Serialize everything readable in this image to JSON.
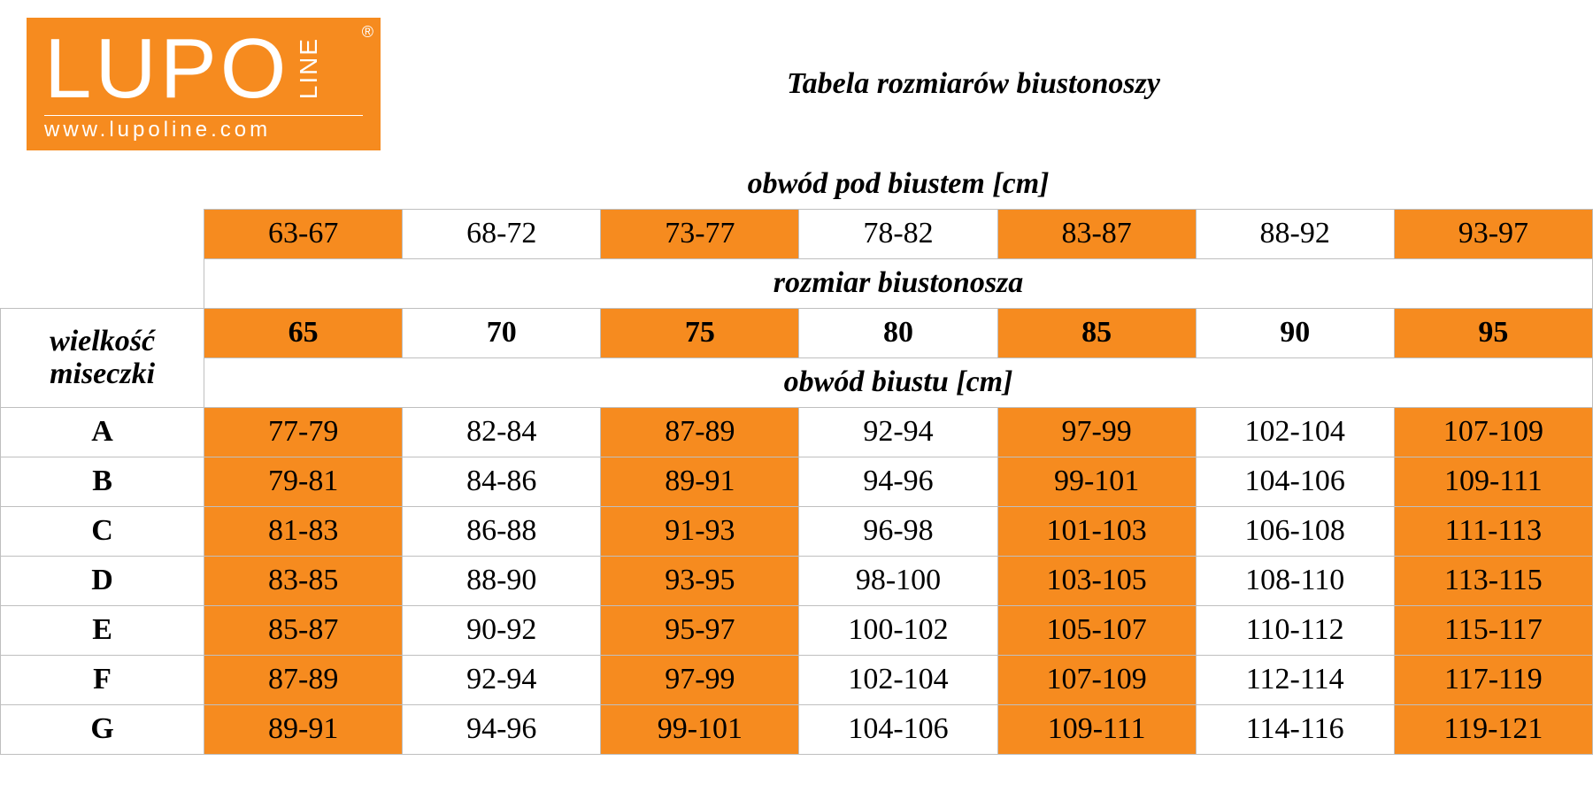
{
  "colors": {
    "brand_orange": "#f68b1f",
    "white": "#ffffff",
    "black": "#000000",
    "grid": "#bfbfbf"
  },
  "logo": {
    "text_main": "LUPO",
    "text_side": "LINE",
    "registered": "®",
    "url": "www.lupoline.com"
  },
  "title": "Tabela rozmiarów biustonoszy",
  "labels": {
    "underbust": "obwód pod biustem [cm]",
    "bra_size": "rozmiar biustonosza",
    "cup_size_1": "wielkość",
    "cup_size_2": "miseczki",
    "bust": "obwód biustu [cm]"
  },
  "underbust_ranges": [
    "63-67",
    "68-72",
    "73-77",
    "78-82",
    "83-87",
    "88-92",
    "93-97"
  ],
  "bra_sizes": [
    "65",
    "70",
    "75",
    "80",
    "85",
    "90",
    "95"
  ],
  "column_orange": [
    true,
    false,
    true,
    false,
    true,
    false,
    true
  ],
  "cups": [
    "A",
    "B",
    "C",
    "D",
    "E",
    "F",
    "G"
  ],
  "bust": {
    "A": [
      "77-79",
      "82-84",
      "87-89",
      "92-94",
      "97-99",
      "102-104",
      "107-109"
    ],
    "B": [
      "79-81",
      "84-86",
      "89-91",
      "94-96",
      "99-101",
      "104-106",
      "109-111"
    ],
    "C": [
      "81-83",
      "86-88",
      "91-93",
      "96-98",
      "101-103",
      "106-108",
      "111-113"
    ],
    "D": [
      "83-85",
      "88-90",
      "93-95",
      "98-100",
      "103-105",
      "108-110",
      "113-115"
    ],
    "E": [
      "85-87",
      "90-92",
      "95-97",
      "100-102",
      "105-107",
      "110-112",
      "115-117"
    ],
    "F": [
      "87-89",
      "92-94",
      "97-99",
      "102-104",
      "107-109",
      "112-114",
      "117-119"
    ],
    "G": [
      "89-91",
      "94-96",
      "99-101",
      "104-106",
      "109-111",
      "114-116",
      "119-121"
    ]
  }
}
